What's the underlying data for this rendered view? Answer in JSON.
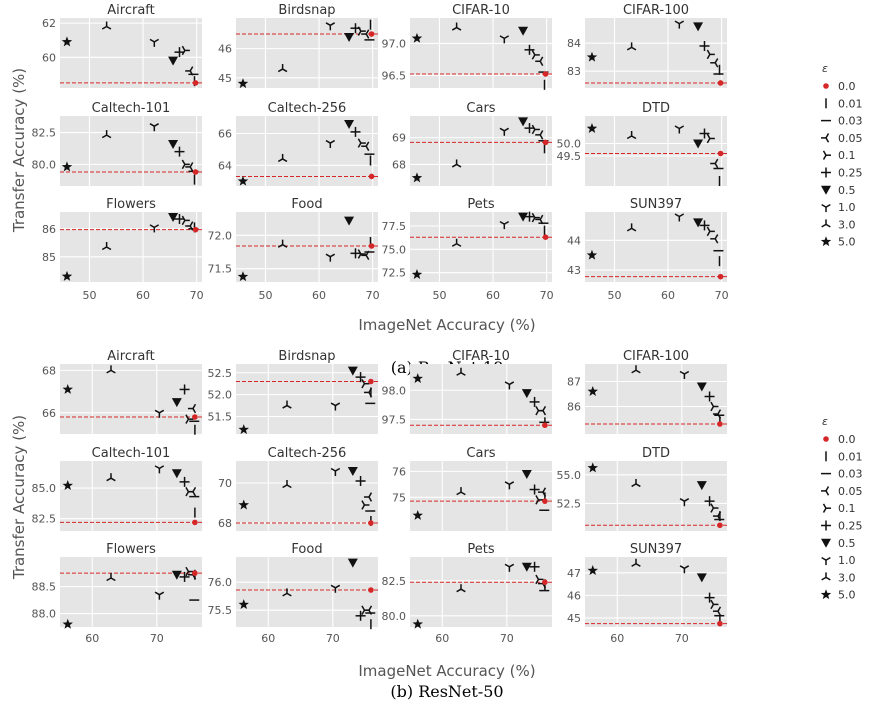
{
  "figure": {
    "xlabel": "ImageNet Accuracy (%)",
    "ylabel": "Transfer Accuracy (%)",
    "legend_title": "ε",
    "legend_placement": "right",
    "grid": true,
    "baseline_color": "#d62728",
    "panel_background": "#e5e5e5"
  },
  "legend": {
    "items": [
      {
        "eps": "0.0",
        "marker": "dot"
      },
      {
        "eps": "0.01",
        "marker": "vline"
      },
      {
        "eps": "0.03",
        "marker": "hline"
      },
      {
        "eps": "0.05",
        "marker": "tri_left"
      },
      {
        "eps": "0.1",
        "marker": "tri_right"
      },
      {
        "eps": "0.25",
        "marker": "plus"
      },
      {
        "eps": "0.5",
        "marker": "triangle_down"
      },
      {
        "eps": "1.0",
        "marker": "tri_down"
      },
      {
        "eps": "3.0",
        "marker": "tri_up"
      },
      {
        "eps": "5.0",
        "marker": "star"
      }
    ]
  },
  "chart_data": [
    {
      "model": "ResNet-18",
      "caption": "(a) ResNet-18",
      "type": "scatter",
      "xlim": [
        44.5,
        71
      ],
      "xticks": [
        50,
        60,
        70
      ],
      "imagenet_acc": [
        69.8,
        69.6,
        69.4,
        68.8,
        67.8,
        66.8,
        65.6,
        62.1,
        53.2,
        45.8
      ],
      "panels": [
        {
          "title": "Aircraft",
          "ylim": [
            58.2,
            62.3
          ],
          "yticks": [
            60,
            62
          ],
          "baseline": 58.5,
          "values": [
            58.5,
            58.6,
            59.0,
            59.2,
            60.4,
            60.3,
            59.8,
            60.9,
            61.8,
            60.9
          ]
        },
        {
          "title": "Birdsnap",
          "ylim": [
            44.65,
            47.05
          ],
          "yticks": [
            45,
            46
          ],
          "baseline": 46.5,
          "values": [
            46.5,
            46.82,
            46.3,
            46.5,
            46.6,
            46.7,
            46.4,
            46.8,
            45.3,
            44.8
          ]
        },
        {
          "title": "CIFAR-10",
          "ylim": [
            96.3,
            97.4
          ],
          "yticks": [
            96.5,
            97.0
          ],
          "baseline": 96.52,
          "values": [
            96.52,
            96.35,
            96.55,
            96.72,
            96.82,
            96.9,
            97.2,
            97.08,
            97.25,
            97.08
          ]
        },
        {
          "title": "CIFAR-100",
          "ylim": [
            82.4,
            84.9
          ],
          "yticks": [
            83,
            84
          ],
          "baseline": 82.58,
          "values": [
            82.58,
            83.05,
            82.9,
            83.3,
            83.6,
            83.9,
            84.6,
            84.7,
            83.85,
            83.5
          ]
        },
        {
          "title": "Caltech-101",
          "ylim": [
            78.3,
            83.8
          ],
          "yticks": [
            80.0,
            82.5
          ],
          "baseline": 79.4,
          "values": [
            79.4,
            78.8,
            79.45,
            79.8,
            80.0,
            81.0,
            81.6,
            83.0,
            82.3,
            79.8
          ]
        },
        {
          "title": "Caltech-256",
          "ylim": [
            62.7,
            67.1
          ],
          "yticks": [
            64,
            66
          ],
          "baseline": 63.3,
          "values": [
            63.3,
            64.3,
            64.7,
            65.2,
            65.4,
            66.1,
            66.6,
            65.4,
            64.4,
            63.0
          ]
        },
        {
          "title": "Cars",
          "ylim": [
            67.2,
            69.8
          ],
          "yticks": [
            68,
            69
          ],
          "baseline": 68.82,
          "values": [
            68.82,
            68.6,
            68.88,
            69.1,
            69.3,
            69.35,
            69.6,
            69.25,
            68.0,
            67.5
          ]
        },
        {
          "title": "DTD",
          "ylim": [
            48.3,
            51.1
          ],
          "yticks": [
            49.5,
            50.0
          ],
          "baseline": 49.6,
          "values": [
            49.6,
            48.5,
            49.0,
            49.2,
            50.2,
            50.4,
            50.0,
            50.6,
            50.3,
            50.6
          ]
        },
        {
          "title": "Flowers",
          "ylim": [
            84.1,
            86.6
          ],
          "yticks": [
            85,
            86
          ],
          "baseline": 85.97,
          "values": [
            85.97,
            86.05,
            86.0,
            86.1,
            86.3,
            86.35,
            86.42,
            86.05,
            85.35,
            84.3
          ]
        },
        {
          "title": "Food",
          "ylim": [
            71.3,
            72.35
          ],
          "yticks": [
            71.5,
            72.0
          ],
          "baseline": 71.84,
          "values": [
            71.84,
            71.9,
            71.75,
            71.7,
            71.72,
            71.73,
            72.22,
            71.68,
            71.86,
            71.38
          ]
        },
        {
          "title": "Pets",
          "ylim": [
            71.5,
            79.0
          ],
          "yticks": [
            72.5,
            75.0,
            77.5
          ],
          "baseline": 76.3,
          "values": [
            76.3,
            77.0,
            77.8,
            78.2,
            78.4,
            78.5,
            78.5,
            77.7,
            75.6,
            72.3
          ]
        },
        {
          "title": "SUN397",
          "ylim": [
            42.6,
            44.95
          ],
          "yticks": [
            43,
            44
          ],
          "baseline": 42.78,
          "values": [
            42.78,
            43.3,
            43.65,
            44.05,
            44.3,
            44.5,
            44.6,
            44.8,
            44.4,
            43.5
          ]
        }
      ]
    },
    {
      "model": "ResNet-50",
      "caption": "(b) ResNet-50",
      "type": "scatter",
      "xlim": [
        55,
        77
      ],
      "xticks": [
        60,
        70
      ],
      "imagenet_acc": [
        75.9,
        75.9,
        75.8,
        75.6,
        74.9,
        74.3,
        73.1,
        70.4,
        62.9,
        56.2
      ],
      "panels": [
        {
          "title": "Aircraft",
          "ylim": [
            65.0,
            68.3
          ],
          "yticks": [
            66,
            68
          ],
          "baseline": 65.8,
          "values": [
            65.8,
            65.2,
            65.6,
            66.2,
            65.7,
            67.1,
            66.5,
            66.0,
            68.0,
            67.1
          ]
        },
        {
          "title": "Birdsnap",
          "ylim": [
            51.1,
            52.7
          ],
          "yticks": [
            51.5,
            52.0,
            52.5
          ],
          "baseline": 52.3,
          "values": [
            52.3,
            52.05,
            51.8,
            52.05,
            52.25,
            52.4,
            52.55,
            51.75,
            51.75,
            51.2
          ]
        },
        {
          "title": "CIFAR-10",
          "ylim": [
            97.25,
            98.45
          ],
          "yticks": [
            97.5,
            98.0
          ],
          "baseline": 97.4,
          "values": [
            97.4,
            97.45,
            97.45,
            97.65,
            97.65,
            97.8,
            97.95,
            98.1,
            98.3,
            98.2
          ]
        },
        {
          "title": "CIFAR-100",
          "ylim": [
            84.9,
            87.7
          ],
          "yticks": [
            86,
            87
          ],
          "baseline": 85.3,
          "values": [
            85.3,
            85.4,
            85.65,
            85.7,
            86.0,
            86.4,
            86.8,
            87.3,
            87.45,
            86.6
          ]
        },
        {
          "title": "Caltech-101",
          "ylim": [
            81.5,
            87.2
          ],
          "yticks": [
            82.5,
            85.0
          ],
          "baseline": 82.2,
          "values": [
            82.2,
            83.0,
            84.3,
            84.7,
            84.7,
            85.5,
            86.2,
            86.6,
            85.8,
            85.2
          ]
        },
        {
          "title": "Caltech-256",
          "ylim": [
            67.6,
            71.1
          ],
          "yticks": [
            68,
            70
          ],
          "baseline": 68.0,
          "values": [
            68.0,
            68.1,
            68.6,
            69.3,
            68.9,
            70.1,
            70.6,
            70.6,
            69.9,
            68.9
          ]
        },
        {
          "title": "Cars",
          "ylim": [
            73.7,
            76.4
          ],
          "yticks": [
            75,
            76
          ],
          "baseline": 74.85,
          "values": [
            74.85,
            75.0,
            74.5,
            75.2,
            74.9,
            75.3,
            75.9,
            75.5,
            75.2,
            74.3
          ]
        },
        {
          "title": "DTD",
          "ylim": [
            50.1,
            56.2
          ],
          "yticks": [
            52.5,
            55.0
          ],
          "baseline": 50.6,
          "values": [
            50.6,
            51.4,
            51.1,
            51.4,
            52.1,
            52.7,
            54.1,
            52.7,
            54.2,
            55.6
          ]
        },
        {
          "title": "Flowers",
          "ylim": [
            87.75,
            89.05
          ],
          "yticks": [
            88.0,
            88.5
          ],
          "baseline": 88.75,
          "values": [
            88.75,
            88.72,
            88.25,
            88.72,
            88.78,
            88.68,
            88.72,
            88.35,
            88.66,
            87.8
          ]
        },
        {
          "title": "Food",
          "ylim": [
            75.2,
            76.45
          ],
          "yticks": [
            75.5,
            76.0
          ],
          "baseline": 75.86,
          "values": [
            75.86,
            75.25,
            75.45,
            75.5,
            75.5,
            75.4,
            76.35,
            75.9,
            75.8,
            75.6
          ]
        },
        {
          "title": "Pets",
          "ylim": [
            79.2,
            84.2
          ],
          "yticks": [
            80.0,
            82.5
          ],
          "baseline": 82.4,
          "values": [
            82.4,
            82.2,
            81.8,
            82.3,
            82.6,
            83.5,
            83.5,
            83.5,
            81.9,
            79.4
          ]
        },
        {
          "title": "SUN397",
          "ylim": [
            44.6,
            47.7
          ],
          "yticks": [
            45,
            46,
            47
          ],
          "baseline": 44.75,
          "values": [
            44.75,
            44.9,
            45.1,
            45.3,
            45.6,
            45.9,
            46.8,
            47.2,
            47.4,
            47.1
          ]
        }
      ]
    }
  ]
}
